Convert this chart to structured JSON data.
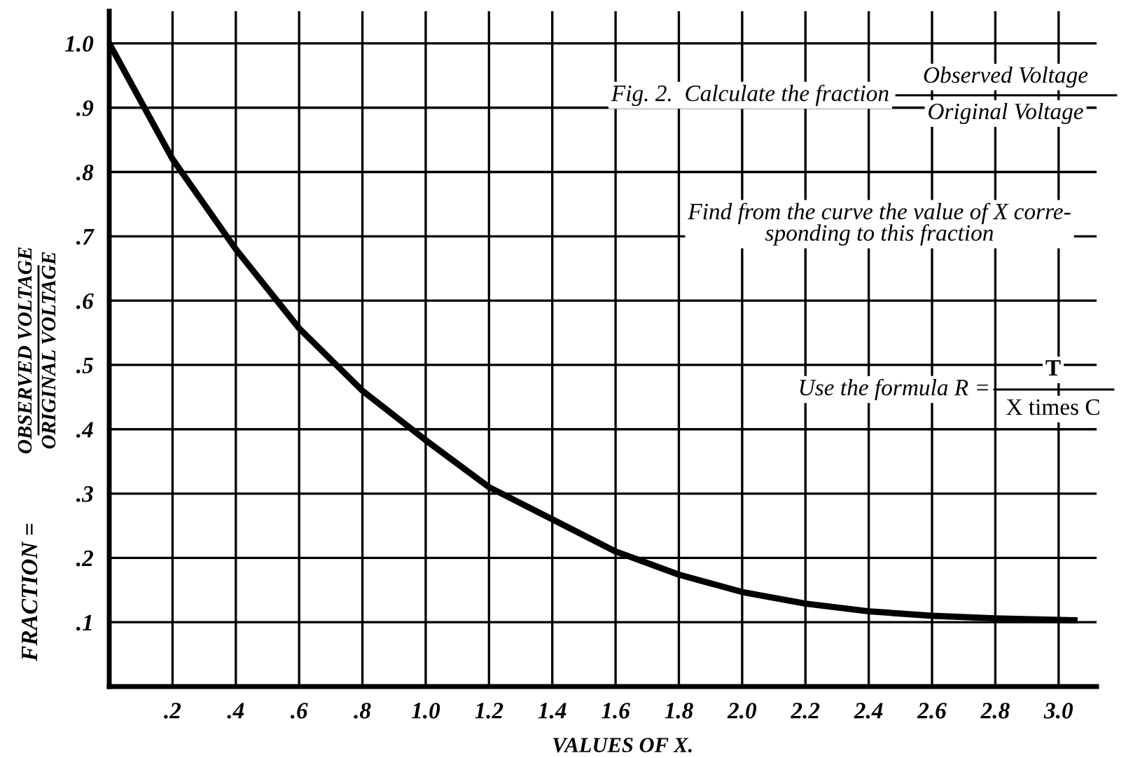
{
  "chart_data": {
    "type": "line",
    "xlabel": "VALUES OF X.",
    "ylabel": "FRACTION =",
    "x": [
      0,
      0.2,
      0.4,
      0.6,
      0.8,
      1.0,
      1.2,
      1.4,
      1.6,
      1.8,
      2.0,
      2.2,
      2.4,
      2.6,
      2.8,
      3.05
    ],
    "series": [
      {
        "color": "#000000",
        "values": [
          1.0,
          0.82,
          0.68,
          0.557,
          0.46,
          0.383,
          0.31,
          0.26,
          0.21,
          0.174,
          0.147,
          0.129,
          0.117,
          0.11,
          0.106,
          0.103
        ]
      }
    ],
    "xlim": [
      0,
      3.12
    ],
    "ylim": [
      0,
      1.05
    ],
    "xticks": [
      {
        "value": 0.2,
        "label": ".2"
      },
      {
        "value": 0.4,
        "label": ".4"
      },
      {
        "value": 0.6,
        "label": ".6"
      },
      {
        "value": 0.8,
        "label": ".8"
      },
      {
        "value": 1.0,
        "label": "1.0"
      },
      {
        "value": 1.2,
        "label": "1.2"
      },
      {
        "value": 1.4,
        "label": "1.4"
      },
      {
        "value": 1.6,
        "label": "1.6"
      },
      {
        "value": 1.8,
        "label": "1.8"
      },
      {
        "value": 2.0,
        "label": "2.0"
      },
      {
        "value": 2.2,
        "label": "2.2"
      },
      {
        "value": 2.4,
        "label": "2.4"
      },
      {
        "value": 2.6,
        "label": "2.6"
      },
      {
        "value": 2.8,
        "label": "2.8"
      },
      {
        "value": 3.0,
        "label": "3.0"
      }
    ],
    "yticks": [
      {
        "value": 0.1,
        "label": ".1"
      },
      {
        "value": 0.2,
        "label": ".2"
      },
      {
        "value": 0.3,
        "label": ".3"
      },
      {
        "value": 0.4,
        "label": ".4"
      },
      {
        "value": 0.5,
        "label": ".5"
      },
      {
        "value": 0.6,
        "label": ".6"
      },
      {
        "value": 0.7,
        "label": ".7"
      },
      {
        "value": 0.8,
        "label": ".8"
      },
      {
        "value": 0.9,
        "label": ".9"
      },
      {
        "value": 1.0,
        "label": "1.0"
      }
    ],
    "grid": true,
    "marker": "none",
    "line_style": "solid",
    "legend": false,
    "annotations": [
      "OBSERVED VOLTAGE",
      "ORIGINAL VOLTAGE",
      "Fig. 2.  Calculate the fraction",
      "Observed Voltage",
      "Original Voltage",
      "Find from the curve the value of X corre-\nsponding to this fraction",
      "Use the formula R =",
      "T",
      "X times C"
    ]
  }
}
